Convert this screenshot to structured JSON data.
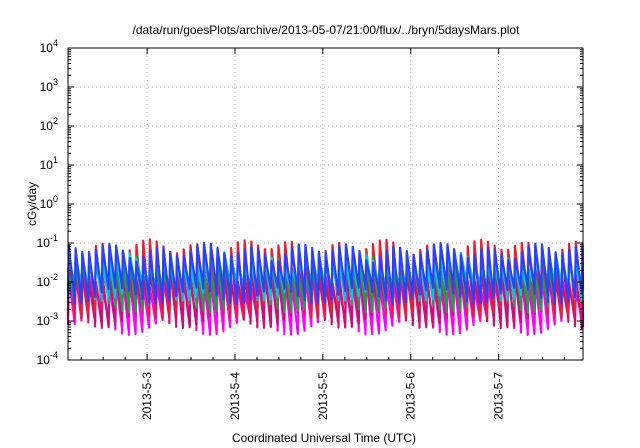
{
  "chart_data": {
    "type": "line",
    "title": "/data/run/goesPlots/archive/2013-05-07/21:00/flux/../bryn/5daysMars.plot",
    "xlabel": "Coordinated Universal Time (UTC)",
    "ylabel": "cGy/day",
    "yscale": "log",
    "ylim": [
      0.0001,
      10000
    ],
    "y_ticks": [
      {
        "exp": "-4",
        "value": 0.0001
      },
      {
        "exp": "-3",
        "value": 0.001
      },
      {
        "exp": "-2",
        "value": 0.01
      },
      {
        "exp": "-1",
        "value": 0.1
      },
      {
        "exp": "0",
        "value": 1
      },
      {
        "exp": "1",
        "value": 10
      },
      {
        "exp": "2",
        "value": 100
      },
      {
        "exp": "3",
        "value": 1000
      },
      {
        "exp": "4",
        "value": 10000
      }
    ],
    "y_tick_base": "10",
    "xlim_days": [
      2.1,
      7.96
    ],
    "x_ticks": [
      {
        "label": "2013-5-3",
        "day": 3
      },
      {
        "label": "2013-5-4",
        "day": 4
      },
      {
        "label": "2013-5-5",
        "day": 5
      },
      {
        "label": "2013-5-6",
        "day": 6
      },
      {
        "label": "2013-5-7",
        "day": 7
      }
    ],
    "grid": true,
    "legend": "none",
    "pattern": "periodic sawtooth dose-rate traces; sharp rise followed by decay, roughly 13 cycles per day",
    "series": [
      {
        "color": "#ff00ff",
        "peak": 0.012,
        "trough": 0.0008
      },
      {
        "color": "#c8107a",
        "peak": 0.018,
        "trough": 0.0012
      },
      {
        "color": "#e8202f",
        "peak": 0.08,
        "trough": 0.0022
      },
      {
        "color": "#20a040",
        "peak": 0.03,
        "trough": 0.003
      },
      {
        "color": "#00c8d8",
        "peak": 0.04,
        "trough": 0.006
      },
      {
        "color": "#2a40ff",
        "peak": 0.065,
        "trough": 0.005
      }
    ]
  }
}
